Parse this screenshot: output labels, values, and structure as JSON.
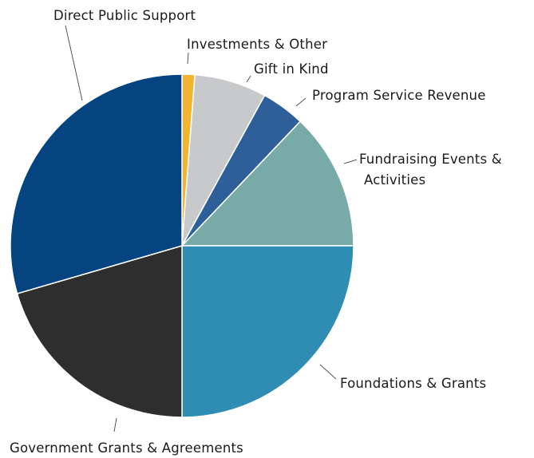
{
  "chart_data": {
    "type": "pie",
    "slices": [
      {
        "label": "Investments & Other",
        "value": 1.2,
        "color": "#f2b532"
      },
      {
        "label": "Gift in Kind",
        "value": 6.8,
        "color": "#c8c9cb"
      },
      {
        "label": "Program Service Revenue",
        "value": 4.1,
        "color": "#2e5f98"
      },
      {
        "label": "Fundraising Events & Activities",
        "value": 12.9,
        "color": "#78aaa8"
      },
      {
        "label": "Foundations & Grants",
        "value": 25.0,
        "color": "#2f8db4"
      },
      {
        "label": "Government Grants & Agreements",
        "value": 20.5,
        "color": "#2e2e2e"
      },
      {
        "label": "Direct Public Support",
        "value": 29.5,
        "color": "#054481"
      }
    ],
    "start_angle_deg": 0,
    "direction": "clockwise",
    "legend": "none"
  }
}
